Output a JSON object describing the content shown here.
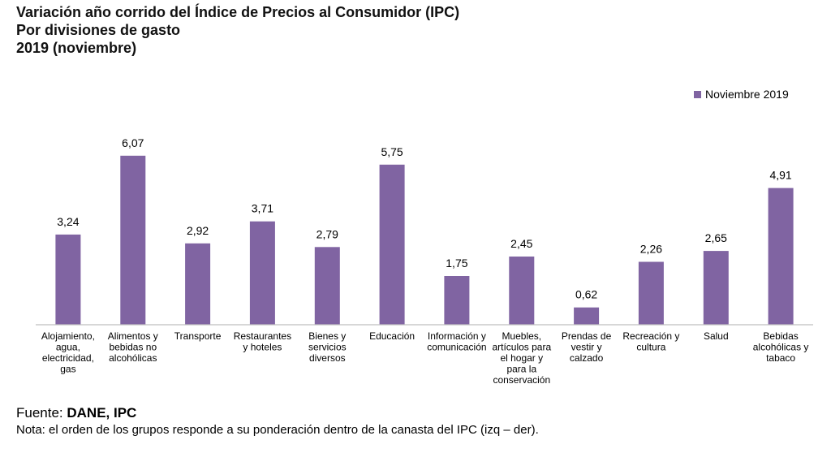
{
  "chart_data": {
    "type": "bar",
    "title": "Variación año corrido del Índice de Precios al Consumidor (IPC)",
    "subtitle": "Por divisiones de gasto",
    "period": "2019 (noviembre)",
    "categories": [
      [
        "Alojamiento,",
        "agua,",
        "electricidad,",
        "gas"
      ],
      [
        "Alimentos y",
        "bebidas no",
        "alcohólicas"
      ],
      [
        "Transporte"
      ],
      [
        "Restaurantes",
        "y hoteles"
      ],
      [
        "Bienes y",
        "servicios",
        "diversos"
      ],
      [
        "Educación"
      ],
      [
        "Información y",
        "comunicación"
      ],
      [
        "Muebles,",
        "artículos para",
        "el hogar y",
        "para la",
        "conservación"
      ],
      [
        "Prendas de",
        "vestir y",
        "calzado"
      ],
      [
        "Recreación y",
        "cultura"
      ],
      [
        "Salud"
      ],
      [
        "Bebidas",
        "alcohólicas y",
        "tabaco"
      ]
    ],
    "series": [
      {
        "name": "Noviembre 2019",
        "values": [
          3.24,
          6.07,
          2.92,
          3.71,
          2.79,
          5.75,
          1.75,
          2.45,
          0.62,
          2.26,
          2.65,
          4.91
        ],
        "labels": [
          "3,24",
          "6,07",
          "2,92",
          "3,71",
          "2,79",
          "5,75",
          "1,75",
          "2,45",
          "0,62",
          "2,26",
          "2,65",
          "4,91"
        ]
      }
    ],
    "ylim": [
      0,
      6.5
    ],
    "grid": false,
    "legend": "top-right",
    "colors": {
      "bar": "#8064a2",
      "axis": "#bfbfbf"
    }
  },
  "footer": {
    "source_prefix": "Fuente: ",
    "source_name": "DANE, IPC",
    "note": "Nota: el orden de los grupos responde a su ponderación dentro de la canasta del IPC (izq – der)."
  }
}
